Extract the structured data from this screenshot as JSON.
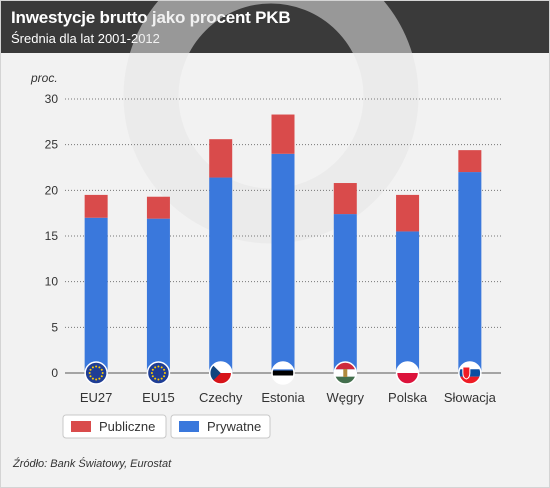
{
  "header": {
    "title": "Inwestycje brutto jako procent PKB",
    "subtitle": "Średnia dla lat 2001-2012"
  },
  "source": "Źródło: Bank Światowy, Eurostat",
  "colors": {
    "publiczne": "#d94b4b",
    "prywatne": "#3a78dc"
  },
  "chart_data": {
    "type": "bar",
    "stacked": true,
    "unit_label": "proc.",
    "categories": [
      "EU27",
      "EU15",
      "Czechy",
      "Estonia",
      "Węgry",
      "Polska",
      "Słowacja"
    ],
    "flags": [
      "eu-flag-icon",
      "eu-flag-icon",
      "czech-flag-icon",
      "estonia-flag-icon",
      "hungary-flag-icon",
      "poland-flag-icon",
      "slovakia-flag-icon"
    ],
    "series": [
      {
        "name": "Prywatne",
        "values": [
          17.0,
          16.9,
          21.4,
          24.0,
          17.4,
          15.5,
          22.0
        ]
      },
      {
        "name": "Publiczne",
        "values": [
          2.5,
          2.4,
          4.2,
          4.3,
          3.4,
          4.0,
          2.4
        ]
      }
    ],
    "ylim": [
      0,
      30
    ],
    "yticks": [
      0,
      5,
      10,
      15,
      20,
      25,
      30
    ],
    "grid": true,
    "legend_position": "bottom-left"
  }
}
